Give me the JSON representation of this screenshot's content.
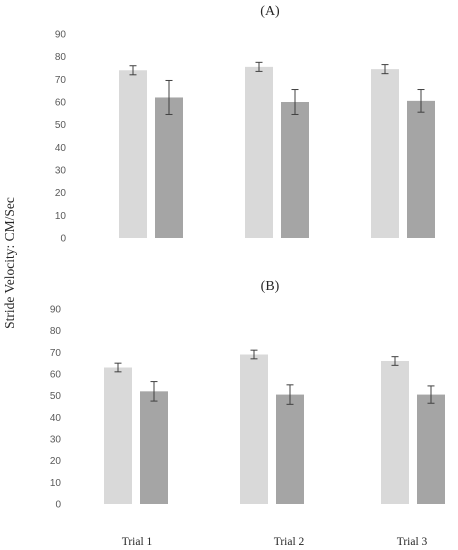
{
  "chart_data": {
    "type": "bar",
    "ylabel": "Stride Velocity: CM/Sec",
    "categories": [
      "Trial 1",
      "Trial 2",
      "Trial 3"
    ],
    "ylim": [
      0,
      90
    ],
    "yticks": [
      0,
      10,
      20,
      30,
      40,
      50,
      60,
      70,
      80,
      90
    ],
    "grid": false,
    "legend": "none",
    "colors": {
      "series1": "#d9d9d9",
      "series2": "#a5a5a5",
      "error_bar": "#404040"
    },
    "panels": [
      {
        "title": "(A)",
        "series": [
          {
            "values": [
              74,
              75.5,
              74.5
            ],
            "errors": [
              2,
              2,
              2
            ]
          },
          {
            "values": [
              62,
              60,
              60.5
            ],
            "errors": [
              7.5,
              5.5,
              5
            ]
          }
        ]
      },
      {
        "title": "(B)",
        "series": [
          {
            "values": [
              63,
              69,
              66
            ],
            "errors": [
              2,
              2,
              2
            ]
          },
          {
            "values": [
              52,
              50.5,
              50.5
            ],
            "errors": [
              4.5,
              4.5,
              4
            ]
          }
        ]
      }
    ]
  }
}
